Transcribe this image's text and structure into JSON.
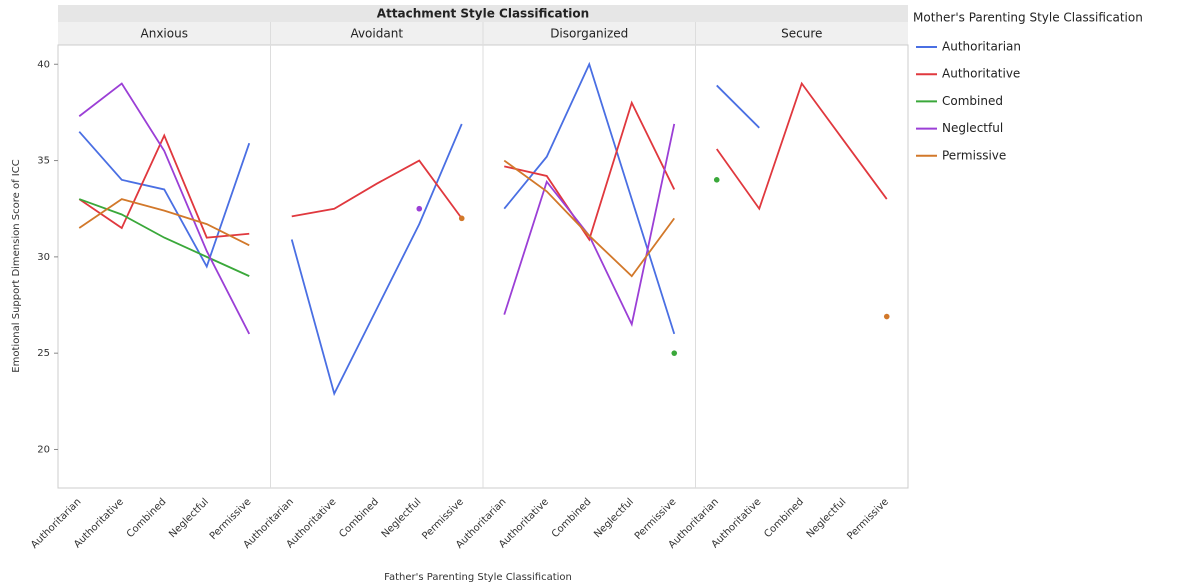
{
  "chart_data": {
    "type": "line",
    "title": "Attachment Style Classification",
    "x_label": "Father's Parenting Style Classification",
    "y_label": "Emotional Support Dimension Score of ICC",
    "legend_title": "Mother's Parenting Style Classification",
    "facets": [
      "Anxious",
      "Avoidant",
      "Disorganized",
      "Secure"
    ],
    "categories": [
      "Authoritarian",
      "Authoritative",
      "Combined",
      "Neglectful",
      "Permissive"
    ],
    "ylim": [
      18,
      41
    ],
    "yticks": [
      20,
      25,
      30,
      35,
      40
    ],
    "series": [
      {
        "name": "Authoritarian",
        "color": "#4a6fe3",
        "values": [
          [
            36.5,
            34.0,
            33.5,
            29.5,
            35.9
          ],
          [
            30.9,
            22.9,
            27.3,
            31.7,
            36.9
          ],
          [
            32.5,
            35.2,
            40.0,
            33.0,
            26.0
          ],
          [
            38.9,
            36.7,
            null,
            null,
            null
          ]
        ]
      },
      {
        "name": "Authoritative",
        "color": "#e0383e",
        "values": [
          [
            33.0,
            31.5,
            36.3,
            31.0,
            31.2
          ],
          [
            32.1,
            32.5,
            33.8,
            35.0,
            32.0
          ],
          [
            34.7,
            34.2,
            30.9,
            38.0,
            33.5
          ],
          [
            35.6,
            32.5,
            39.0,
            36.0,
            33.0
          ]
        ]
      },
      {
        "name": "Combined",
        "color": "#3aa83a",
        "values": [
          [
            33.0,
            32.2,
            31.0,
            30.0,
            29.0
          ],
          [
            null,
            null,
            null,
            null,
            null
          ],
          [
            null,
            null,
            null,
            null,
            25.0
          ],
          [
            34.0,
            null,
            null,
            null,
            null
          ]
        ]
      },
      {
        "name": "Neglectful",
        "color": "#9b3fd6",
        "values": [
          [
            37.3,
            39.0,
            35.5,
            30.3,
            26.0
          ],
          [
            null,
            null,
            null,
            32.5,
            null
          ],
          [
            27.0,
            33.9,
            31.1,
            26.5,
            36.9
          ],
          [
            null,
            null,
            null,
            null,
            null
          ]
        ]
      },
      {
        "name": "Permissive",
        "color": "#d2782a",
        "values": [
          [
            31.5,
            33.0,
            32.4,
            31.7,
            30.6
          ],
          [
            null,
            null,
            null,
            null,
            32.0
          ],
          [
            35.0,
            33.4,
            31.1,
            29.0,
            32.0
          ],
          [
            null,
            null,
            null,
            null,
            26.9
          ]
        ]
      }
    ]
  }
}
